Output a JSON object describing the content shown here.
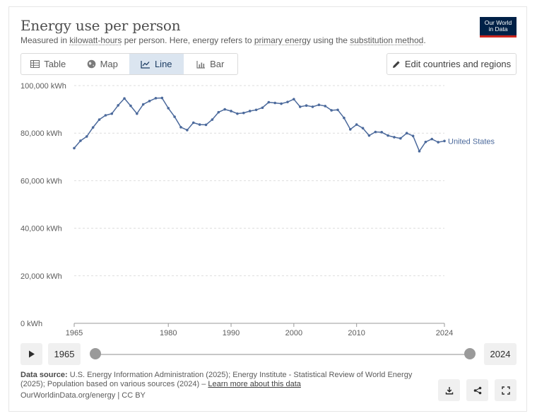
{
  "header": {
    "title": "Energy use per person",
    "subtitle": {
      "prefix": "Measured in ",
      "link1": "kilowatt-hours",
      "mid1": " per person. Here, energy refers to ",
      "link2": "primary energy",
      "mid2": " using the ",
      "link3": "substitution method",
      "suffix": "."
    },
    "logo_line1": "Our World",
    "logo_line2": "in Data"
  },
  "tabs": [
    {
      "label": "Table",
      "icon": "table-icon",
      "active": false
    },
    {
      "label": "Map",
      "icon": "globe-icon",
      "active": false
    },
    {
      "label": "Line",
      "icon": "line-chart-icon",
      "active": true
    },
    {
      "label": "Bar",
      "icon": "bar-chart-icon",
      "active": false
    }
  ],
  "edit_button_label": "Edit countries and regions",
  "colors": {
    "series": "#4c6a9c",
    "accent": "#002147",
    "logo_red": "#ce261e",
    "grid": "#dddddd"
  },
  "chart_data": {
    "type": "line",
    "title": "Energy use per person",
    "xlabel": "",
    "ylabel": "kWh",
    "xlim": [
      1965,
      2024
    ],
    "ylim": [
      0,
      100000
    ],
    "y_ticks": [
      0,
      20000,
      40000,
      60000,
      80000,
      100000
    ],
    "y_tick_labels": [
      "0 kWh",
      "20,000 kWh",
      "40,000 kWh",
      "60,000 kWh",
      "80,000 kWh",
      "100,000 kWh"
    ],
    "x_ticks": [
      1965,
      1980,
      1990,
      2000,
      2010,
      2024
    ],
    "x_tick_labels": [
      "1965",
      "1980",
      "1990",
      "2000",
      "2010",
      "2024"
    ],
    "grid": true,
    "series": [
      {
        "name": "United States",
        "label": "United States",
        "x": [
          1965,
          1966,
          1967,
          1968,
          1969,
          1970,
          1971,
          1972,
          1973,
          1974,
          1975,
          1976,
          1977,
          1978,
          1979,
          1980,
          1981,
          1982,
          1983,
          1984,
          1985,
          1986,
          1987,
          1988,
          1989,
          1990,
          1991,
          1992,
          1993,
          1994,
          1995,
          1996,
          1997,
          1998,
          1999,
          2000,
          2001,
          2002,
          2003,
          2004,
          2005,
          2006,
          2007,
          2008,
          2009,
          2010,
          2011,
          2012,
          2013,
          2014,
          2015,
          2016,
          2017,
          2018,
          2019,
          2020,
          2021,
          2022,
          2023,
          2024
        ],
        "values": [
          73700,
          76800,
          78600,
          82400,
          85700,
          87500,
          88200,
          91700,
          94600,
          91500,
          88200,
          92100,
          93500,
          94700,
          94800,
          90500,
          86900,
          82500,
          81300,
          84400,
          83600,
          83500,
          85700,
          88800,
          90000,
          89300,
          88200,
          88500,
          89300,
          89800,
          90700,
          93000,
          92700,
          92400,
          93100,
          94300,
          91100,
          91600,
          91100,
          91900,
          91400,
          89600,
          89800,
          86400,
          81600,
          83600,
          82100,
          79000,
          80500,
          80400,
          79000,
          78300,
          77800,
          80000,
          78800,
          72400,
          76300,
          77500,
          76200,
          76700
        ]
      }
    ]
  },
  "timeline": {
    "start_year": "1965",
    "end_year": "2024"
  },
  "footer": {
    "source_label": "Data source:",
    "source_text": " U.S. Energy Information Administration (2025); Energy Institute - Statistical Review of World Energy (2025); Population based on various sources (2024) – ",
    "learn_more": "Learn more about this data",
    "url_line": "OurWorldinData.org/energy | CC BY"
  }
}
